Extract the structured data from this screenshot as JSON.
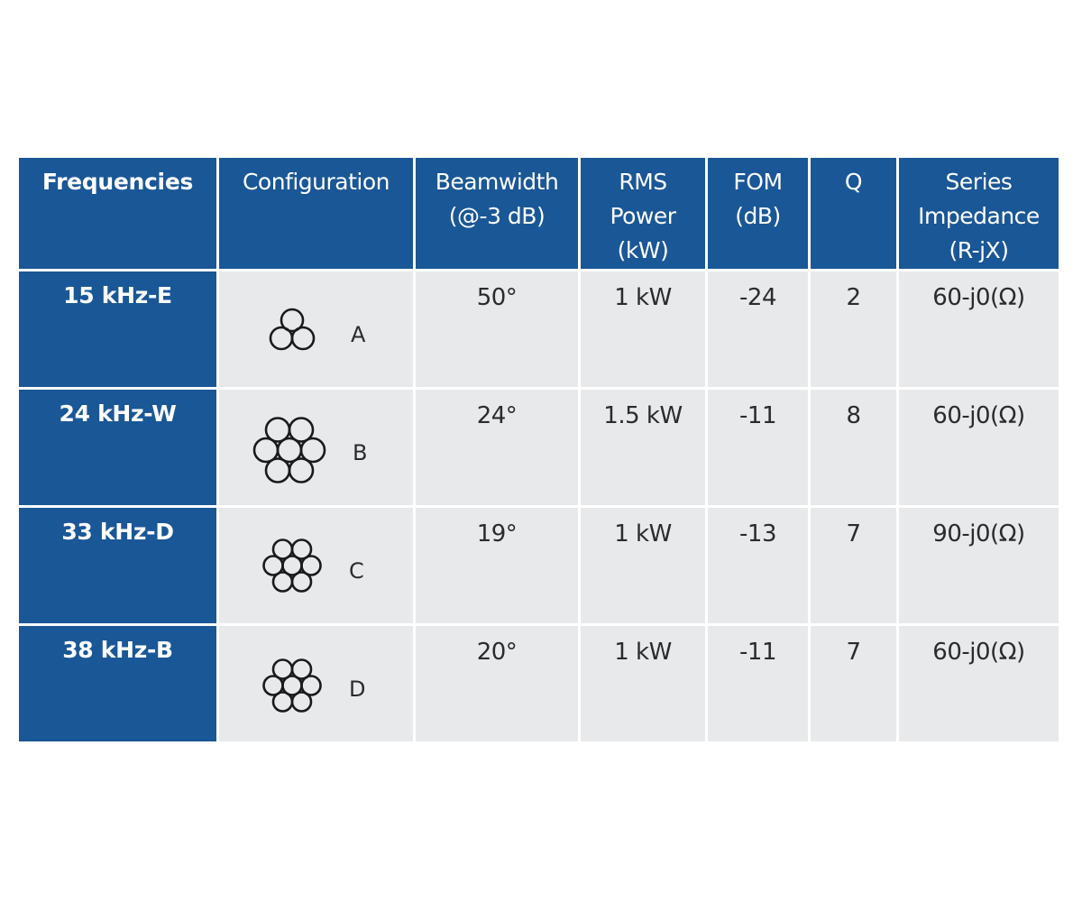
{
  "table": {
    "headers": {
      "frequencies": [
        "Frequencies"
      ],
      "configuration": [
        "Configuration"
      ],
      "beamwidth": [
        "Beamwidth",
        "(@-3 dB)"
      ],
      "rms_power": [
        "RMS",
        "Power",
        "(kW)"
      ],
      "fom": [
        "FOM",
        "(dB)"
      ],
      "q": [
        "Q"
      ],
      "impedance": [
        "Series",
        "Impedance",
        "(R-jX)"
      ]
    },
    "rows": [
      {
        "frequency": "15 kHz-E",
        "config_letter": "A",
        "config_icon": "three-circle-cluster-icon",
        "beamwidth": "50°",
        "rms_power": "1 kW",
        "fom": "-24",
        "q": "2",
        "impedance": "60-j0(Ω)"
      },
      {
        "frequency": "24 kHz-W",
        "config_letter": "B",
        "config_icon": "seven-circle-hex-large-icon",
        "beamwidth": "24°",
        "rms_power": "1.5 kW",
        "fom": "-11",
        "q": "8",
        "impedance": "60-j0(Ω)"
      },
      {
        "frequency": "33 kHz-D",
        "config_letter": "C",
        "config_icon": "seven-circle-hex-small-icon",
        "beamwidth": "19°",
        "rms_power": "1 kW",
        "fom": "-13",
        "q": "7",
        "impedance": "90-j0(Ω)"
      },
      {
        "frequency": "38 kHz-B",
        "config_letter": "D",
        "config_icon": "seven-circle-hex-small-icon",
        "beamwidth": "20°",
        "rms_power": "1 kW",
        "fom": "-11",
        "q": "7",
        "impedance": "60-j0(Ω)"
      }
    ],
    "colors": {
      "header_blue": "#1a5797",
      "cell_gray": "#e8e9eb",
      "text_dark": "#2b2b2b"
    }
  }
}
